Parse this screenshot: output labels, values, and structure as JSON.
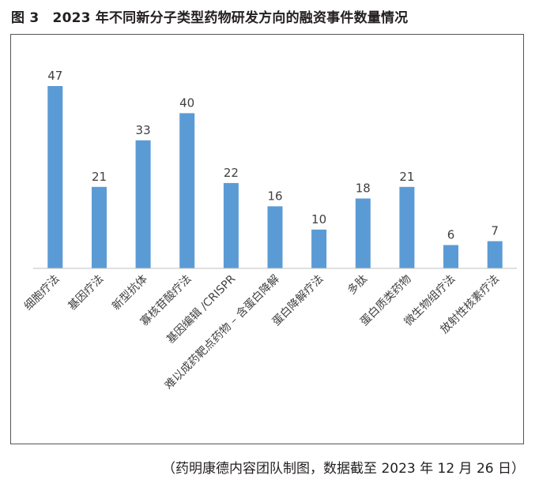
{
  "figure": {
    "title": "图 3　2023 年不同新分子类型药物研发方向的融资事件数量情况",
    "source_note": "（药明康德内容团队制图，数据截至 2023 年 12 月 26 日）"
  },
  "chart_data": {
    "type": "bar",
    "title": "",
    "xlabel": "",
    "ylabel": "",
    "categories": [
      "细胞疗法",
      "基因疗法",
      "新型抗体",
      "寡核苷酸疗法",
      "基因编辑 /CRISPR",
      "难以成药靶点药物 – 含蛋白降解",
      "蛋白降解疗法",
      "多肽",
      "蛋白质类药物",
      "微生物组疗法",
      "放射性核素疗法"
    ],
    "values": [
      47,
      21,
      33,
      40,
      22,
      16,
      10,
      18,
      21,
      6,
      7
    ],
    "ylim": [
      0,
      50
    ],
    "bar_color": "#5b9bd5",
    "axis_color": "#bfbfbf",
    "grid": false,
    "legend": "none",
    "data_labels": true,
    "x_tick_rotation": "-45deg"
  }
}
